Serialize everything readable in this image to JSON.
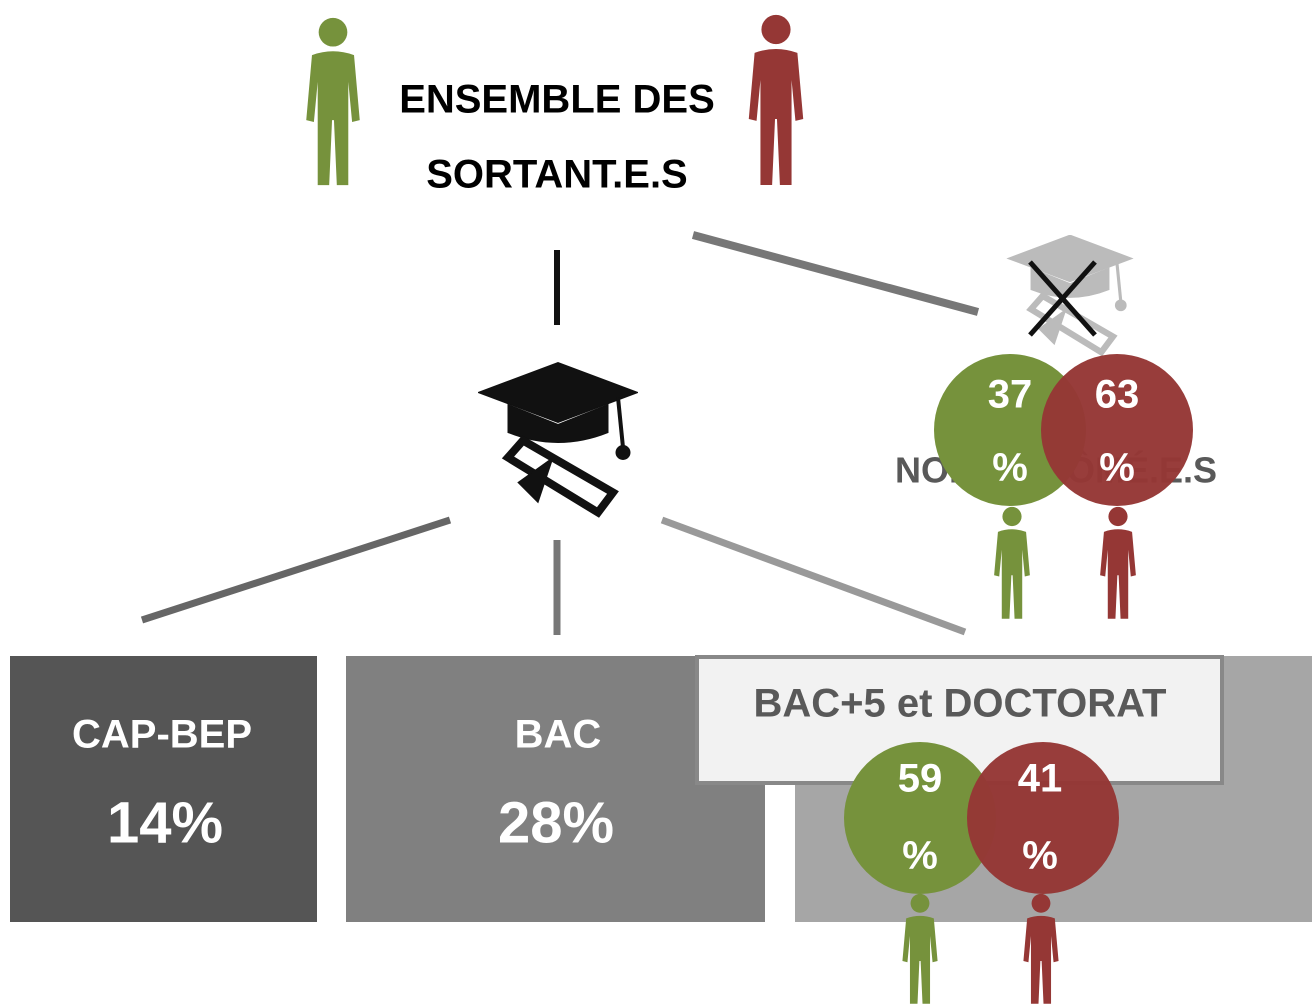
{
  "title": {
    "line1": "ENSEMBLE DES",
    "line2": "SORTANT.E.S"
  },
  "non_diplomes": {
    "label": "NON DIPLÔMÉ.E.S",
    "women": {
      "value": 37,
      "unit": "%"
    },
    "men": {
      "value": 63,
      "unit": "%"
    }
  },
  "boxes": [
    {
      "label": "CAP-BEP",
      "share": "14%"
    },
    {
      "label": "BAC",
      "share": "28%"
    }
  ],
  "bac5": {
    "label": "BAC+5 et DOCTORAT",
    "women": {
      "value": 59,
      "unit": "%"
    },
    "men": {
      "value": 41,
      "unit": "%"
    }
  }
}
